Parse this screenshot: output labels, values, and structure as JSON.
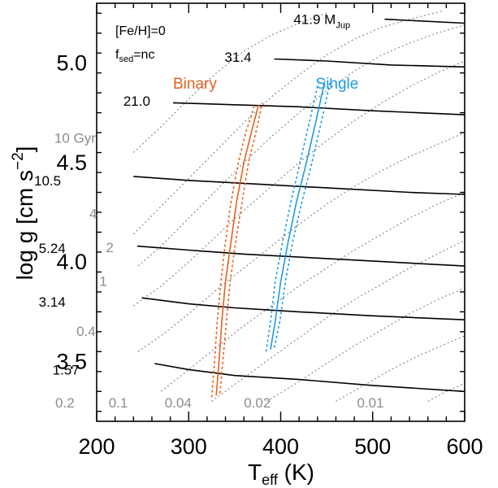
{
  "chart_data": {
    "type": "line",
    "xlabel": {
      "main": "T",
      "sub": "eff",
      "rest": " (K)"
    },
    "ylabel": {
      "main": "log g [cm s",
      "sup": "−2",
      "rest": "]"
    },
    "xlim": [
      200,
      600
    ],
    "ylim": [
      3.2,
      5.3
    ],
    "x_ticks": [
      200,
      300,
      400,
      500,
      600
    ],
    "y_ticks": [
      3.5,
      4.0,
      4.5,
      5.0
    ],
    "y_tick_labels": [
      "3.5",
      "4.0",
      "4.5",
      "5.0"
    ],
    "grid": false,
    "annotations": {
      "metallicity": "[Fe/H]=0",
      "fsed": {
        "main": "f",
        "sub": "sed",
        "rest": "=nc"
      }
    },
    "colors": {
      "binary": "#e8601c",
      "single": "#1e9be6",
      "isochrone": "#8c8c8c",
      "mass_track": "#000000"
    },
    "mass_tracks": [
      {
        "label": "41.9 M",
        "label_sub": "Jup",
        "label_xy": [
          414,
          5.22
        ],
        "points": [
          [
            513,
            5.22
          ],
          [
            600,
            5.2
          ]
        ]
      },
      {
        "label": "31.4",
        "label_xy": [
          339,
          5.03
        ],
        "points": [
          [
            393,
            5.02
          ],
          [
            450,
            5.01
          ],
          [
            520,
            4.99
          ],
          [
            600,
            4.98
          ]
        ]
      },
      {
        "label": "21.0",
        "label_xy": [
          229,
          4.81
        ],
        "points": [
          [
            283,
            4.8
          ],
          [
            350,
            4.79
          ],
          [
            420,
            4.78
          ],
          [
            500,
            4.76
          ],
          [
            600,
            4.74
          ]
        ]
      },
      {
        "label": "10.5",
        "label_xy": [
          132,
          4.41
        ],
        "points": [
          [
            240,
            4.43
          ],
          [
            300,
            4.41
          ],
          [
            380,
            4.39
          ],
          [
            460,
            4.37
          ],
          [
            540,
            4.35
          ],
          [
            600,
            4.34
          ]
        ]
      },
      {
        "label": "5.24",
        "label_xy": [
          137,
          4.07
        ],
        "points": [
          [
            244,
            4.08
          ],
          [
            300,
            4.06
          ],
          [
            360,
            4.04
          ],
          [
            440,
            4.02
          ],
          [
            520,
            4.0
          ],
          [
            600,
            3.98
          ]
        ]
      },
      {
        "label": "3.14",
        "label_xy": [
          137,
          3.8
        ],
        "points": [
          [
            249,
            3.82
          ],
          [
            300,
            3.79
          ],
          [
            350,
            3.77
          ],
          [
            420,
            3.75
          ],
          [
            500,
            3.73
          ],
          [
            600,
            3.71
          ]
        ]
      },
      {
        "label": "1.57",
        "label_xy": [
          152,
          3.46
        ],
        "points": [
          [
            263,
            3.49
          ],
          [
            300,
            3.46
          ],
          [
            350,
            3.43
          ],
          [
            420,
            3.41
          ],
          [
            500,
            3.38
          ],
          [
            600,
            3.35
          ]
        ]
      }
    ],
    "isochrones": [
      {
        "label": "10 Gyr",
        "label_xy": [
          154,
          4.6
        ],
        "points": [
          [
            240,
            4.55
          ],
          [
            270,
            4.68
          ],
          [
            300,
            4.82
          ],
          [
            330,
            4.95
          ],
          [
            360,
            5.06
          ],
          [
            390,
            5.14
          ],
          [
            420,
            5.2
          ],
          [
            450,
            5.25
          ]
        ]
      },
      {
        "label": "4",
        "label_xy": [
          192,
          4.22
        ],
        "points": [
          [
            240,
            4.14
          ],
          [
            270,
            4.28
          ],
          [
            300,
            4.42
          ],
          [
            330,
            4.56
          ],
          [
            360,
            4.7
          ],
          [
            390,
            4.83
          ],
          [
            420,
            4.94
          ],
          [
            450,
            5.04
          ],
          [
            480,
            5.12
          ],
          [
            510,
            5.18
          ],
          [
            540,
            5.22
          ],
          [
            575,
            5.26
          ]
        ]
      },
      {
        "label": "2",
        "label_xy": [
          210,
          4.05
        ],
        "points": [
          [
            245,
            3.98
          ],
          [
            270,
            4.08
          ],
          [
            300,
            4.22
          ],
          [
            330,
            4.36
          ],
          [
            360,
            4.5
          ],
          [
            390,
            4.63
          ],
          [
            420,
            4.75
          ],
          [
            450,
            4.86
          ],
          [
            480,
            4.96
          ],
          [
            510,
            5.04
          ],
          [
            540,
            5.1
          ],
          [
            570,
            5.15
          ],
          [
            600,
            5.19
          ]
        ]
      },
      {
        "label": "1",
        "label_xy": [
          203,
          3.88
        ],
        "points": [
          [
            240,
            3.78
          ],
          [
            270,
            3.88
          ],
          [
            300,
            4.0
          ],
          [
            330,
            4.13
          ],
          [
            360,
            4.26
          ],
          [
            390,
            4.38
          ],
          [
            420,
            4.5
          ],
          [
            450,
            4.61
          ],
          [
            480,
            4.71
          ],
          [
            510,
            4.8
          ],
          [
            540,
            4.88
          ],
          [
            570,
            4.95
          ],
          [
            600,
            5.01
          ]
        ]
      },
      {
        "label": "0.4",
        "label_xy": [
          178,
          3.63
        ],
        "points": [
          [
            245,
            3.55
          ],
          [
            270,
            3.63
          ],
          [
            300,
            3.74
          ],
          [
            330,
            3.86
          ],
          [
            360,
            3.97
          ],
          [
            390,
            4.08
          ],
          [
            420,
            4.19
          ],
          [
            450,
            4.29
          ],
          [
            480,
            4.38
          ],
          [
            510,
            4.46
          ],
          [
            540,
            4.53
          ],
          [
            570,
            4.59
          ],
          [
            600,
            4.65
          ]
        ]
      },
      {
        "label": "0.2",
        "label_xy": [
          155,
          3.27
        ],
        "points": [
          [
            270,
            3.35
          ],
          [
            300,
            3.46
          ],
          [
            330,
            3.57
          ],
          [
            360,
            3.68
          ],
          [
            390,
            3.78
          ],
          [
            420,
            3.88
          ],
          [
            450,
            3.97
          ],
          [
            480,
            4.06
          ],
          [
            510,
            4.14
          ],
          [
            540,
            4.22
          ],
          [
            570,
            4.29
          ],
          [
            600,
            4.35
          ]
        ]
      },
      {
        "label": "0.1",
        "label_xy": [
          213,
          3.27
        ],
        "points": [
          [
            325,
            3.3
          ],
          [
            360,
            3.42
          ],
          [
            390,
            3.52
          ],
          [
            420,
            3.62
          ],
          [
            450,
            3.72
          ],
          [
            480,
            3.81
          ],
          [
            510,
            3.89
          ],
          [
            540,
            3.97
          ],
          [
            570,
            4.04
          ],
          [
            600,
            4.11
          ]
        ]
      },
      {
        "label": "0.04",
        "label_xy": [
          274,
          3.27
        ],
        "points": [
          [
            385,
            3.3
          ],
          [
            420,
            3.4
          ],
          [
            450,
            3.49
          ],
          [
            480,
            3.58
          ],
          [
            510,
            3.66
          ],
          [
            540,
            3.74
          ],
          [
            570,
            3.81
          ],
          [
            600,
            3.87
          ]
        ]
      },
      {
        "label": "0.02",
        "label_xy": [
          360,
          3.27
        ],
        "points": [
          [
            460,
            3.3
          ],
          [
            490,
            3.38
          ],
          [
            520,
            3.46
          ],
          [
            550,
            3.53
          ],
          [
            580,
            3.59
          ],
          [
            600,
            3.63
          ]
        ]
      },
      {
        "label": "0.01",
        "label_xy": [
          483,
          3.27
        ],
        "points": [
          [
            560,
            3.3
          ],
          [
            580,
            3.35
          ],
          [
            600,
            3.39
          ]
        ]
      }
    ],
    "series": [
      {
        "name": "Binary",
        "label_xy": [
          283,
          4.87
        ],
        "central": [
          [
            330,
            3.33
          ],
          [
            333,
            3.5
          ],
          [
            336,
            3.7
          ],
          [
            340,
            3.9
          ],
          [
            346,
            4.1
          ],
          [
            352,
            4.3
          ],
          [
            360,
            4.5
          ],
          [
            368,
            4.65
          ],
          [
            376,
            4.79
          ]
        ],
        "lower": [
          [
            325,
            3.32
          ],
          [
            328,
            3.5
          ],
          [
            331,
            3.7
          ],
          [
            335,
            3.9
          ],
          [
            340,
            4.1
          ],
          [
            346,
            4.3
          ],
          [
            354,
            4.5
          ],
          [
            362,
            4.65
          ],
          [
            371,
            4.78
          ]
        ],
        "upper": [
          [
            334,
            3.34
          ],
          [
            337,
            3.5
          ],
          [
            341,
            3.7
          ],
          [
            345,
            3.9
          ],
          [
            351,
            4.1
          ],
          [
            358,
            4.3
          ],
          [
            365,
            4.5
          ],
          [
            373,
            4.65
          ],
          [
            380,
            4.8
          ]
        ]
      },
      {
        "name": "Single",
        "label_xy": [
          438,
          4.87
        ],
        "central": [
          [
            389,
            3.56
          ],
          [
            394,
            3.7
          ],
          [
            400,
            3.9
          ],
          [
            408,
            4.1
          ],
          [
            417,
            4.3
          ],
          [
            428,
            4.5
          ],
          [
            438,
            4.7
          ],
          [
            448,
            4.91
          ]
        ],
        "lower": [
          [
            384,
            3.55
          ],
          [
            389,
            3.7
          ],
          [
            394,
            3.9
          ],
          [
            402,
            4.1
          ],
          [
            411,
            4.3
          ],
          [
            421,
            4.5
          ],
          [
            431,
            4.7
          ],
          [
            441,
            4.9
          ]
        ],
        "upper": [
          [
            393,
            3.57
          ],
          [
            399,
            3.7
          ],
          [
            405,
            3.9
          ],
          [
            413,
            4.1
          ],
          [
            423,
            4.3
          ],
          [
            434,
            4.5
          ],
          [
            444,
            4.7
          ],
          [
            455,
            4.93
          ]
        ]
      }
    ]
  }
}
